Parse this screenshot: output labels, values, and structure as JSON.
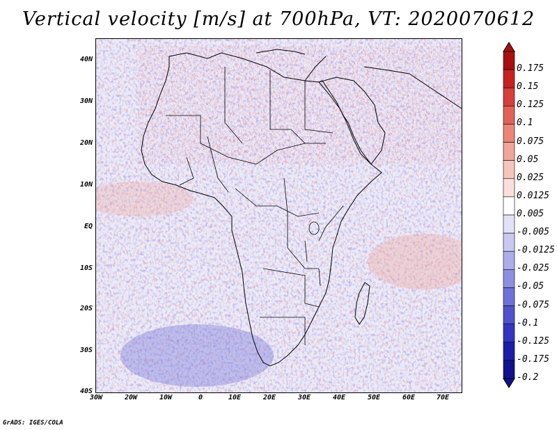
{
  "title": "Vertical velocity [m/s] at 700hPa, VT: 2020070612",
  "footer": "GrADS: IGES/COLA",
  "map": {
    "lat_labels": [
      "40N",
      "30N",
      "20N",
      "10N",
      "EQ",
      "10S",
      "20S",
      "30S",
      "40S"
    ],
    "lon_labels": [
      "30W",
      "20W",
      "10W",
      "0",
      "10E",
      "20E",
      "30E",
      "40E",
      "50E",
      "60E",
      "70E"
    ],
    "extent": {
      "lon_min": -30,
      "lon_max": 75,
      "lat_min": -40,
      "lat_max": 44
    }
  },
  "legend": {
    "labels": [
      "0.175",
      "0.15",
      "0.125",
      "0.1",
      "0.075",
      "0.05",
      "0.025",
      "0.0125",
      "0.005",
      "-0.005",
      "-0.0125",
      "-0.025",
      "-0.05",
      "-0.075",
      "-0.1",
      "-0.125",
      "-0.175",
      "-0.2"
    ],
    "colors": [
      "#a80f10",
      "#c62220",
      "#d63f3a",
      "#e26259",
      "#ea8578",
      "#f0a69c",
      "#f5c5bd",
      "#fae0dc",
      "#ffffff",
      "#e2e2f7",
      "#c9c9f0",
      "#adadea",
      "#8f8fe2",
      "#7070d8",
      "#5151cc",
      "#3535c0",
      "#1d1da8",
      "#12128c"
    ]
  }
}
